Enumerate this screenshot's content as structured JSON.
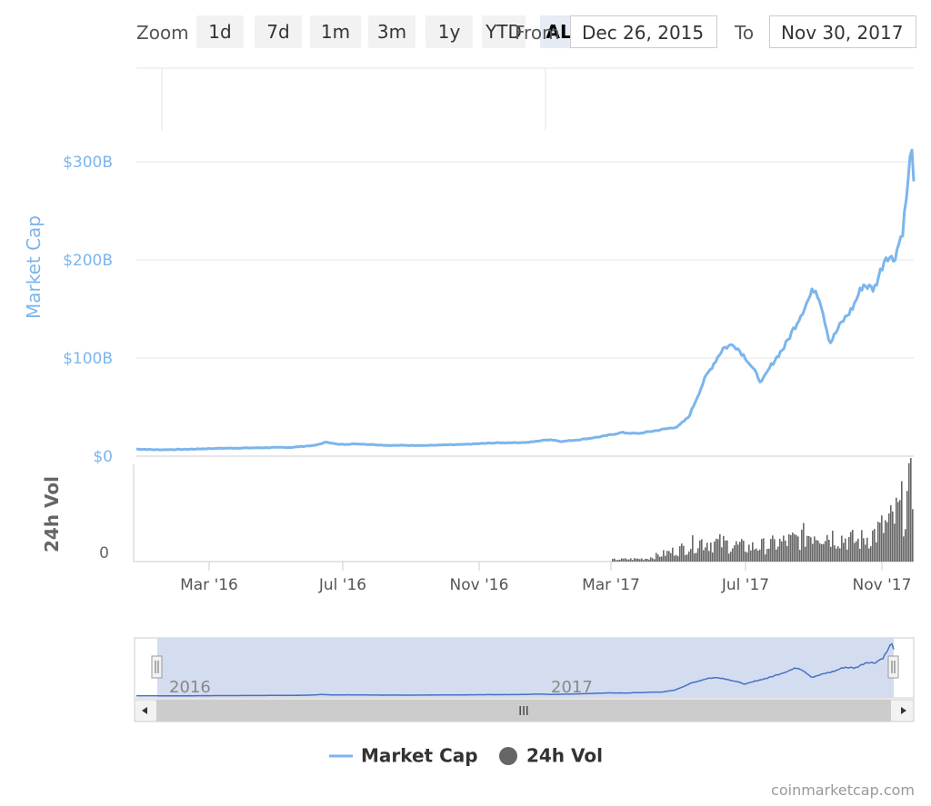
{
  "range_selector": {
    "zoom_label": "Zoom",
    "buttons": [
      "1d",
      "7d",
      "1m",
      "3m",
      "1y",
      "YTD",
      "ALL"
    ],
    "active": "ALL",
    "from_label": "From",
    "from_value": "Dec 26, 2015",
    "to_label": "To",
    "to_value": "Nov 30, 2017"
  },
  "legend": {
    "market_cap": "Market Cap",
    "volume": "24h Vol"
  },
  "credit": "coinmarketcap.com",
  "navigator": {
    "labels": [
      "2016",
      "2017"
    ],
    "grip": "III"
  },
  "colors": {
    "market_cap": "#7cb5ec",
    "volume": "#666666",
    "navigator_fill": "#d2daee",
    "navigator_line": "#4572c4"
  },
  "chart_data": {
    "type": "line",
    "title": "",
    "x_range": [
      "2015-12-26",
      "2017-11-30"
    ],
    "x_ticks": [
      "Mar '16",
      "Jul '16",
      "Nov '16",
      "Mar '17",
      "Jul '17",
      "Nov '17"
    ],
    "y_axis_market_cap": {
      "label": "Market Cap",
      "ticks": [
        "$0",
        "$100B",
        "$200B",
        "$300B"
      ],
      "tick_values": [
        0,
        100,
        200,
        300
      ],
      "unit": "B USD"
    },
    "y_axis_volume": {
      "label": "24h Vol",
      "ticks": [
        "0"
      ],
      "tick_values": [
        0
      ]
    },
    "grid": true,
    "legend_position": "bottom",
    "series": [
      {
        "name": "Market Cap",
        "type": "line",
        "points": [
          [
            "2015-12-26",
            7.2
          ],
          [
            "2016-01-15",
            6.5
          ],
          [
            "2016-02-10",
            7
          ],
          [
            "2016-03-10",
            8
          ],
          [
            "2016-04-15",
            8.5
          ],
          [
            "2016-05-15",
            9
          ],
          [
            "2016-06-05",
            11
          ],
          [
            "2016-06-16",
            14.5
          ],
          [
            "2016-06-25",
            12
          ],
          [
            "2016-07-15",
            12.5
          ],
          [
            "2016-08-10",
            11
          ],
          [
            "2016-09-15",
            11
          ],
          [
            "2016-10-15",
            11.8
          ],
          [
            "2016-11-15",
            13.5
          ],
          [
            "2016-12-15",
            14
          ],
          [
            "2017-01-04",
            17
          ],
          [
            "2017-01-15",
            15
          ],
          [
            "2017-02-01",
            17
          ],
          [
            "2017-02-20",
            20
          ],
          [
            "2017-03-10",
            24
          ],
          [
            "2017-03-25",
            23
          ],
          [
            "2017-04-10",
            26
          ],
          [
            "2017-04-30",
            30
          ],
          [
            "2017-05-10",
            40
          ],
          [
            "2017-05-25",
            80
          ],
          [
            "2017-06-10",
            110
          ],
          [
            "2017-06-20",
            114
          ],
          [
            "2017-07-01",
            100
          ],
          [
            "2017-07-15",
            75
          ],
          [
            "2017-07-25",
            95
          ],
          [
            "2017-08-05",
            112
          ],
          [
            "2017-08-20",
            145
          ],
          [
            "2017-09-01",
            172
          ],
          [
            "2017-09-06",
            160
          ],
          [
            "2017-09-15",
            115
          ],
          [
            "2017-09-25",
            135
          ],
          [
            "2017-10-05",
            150
          ],
          [
            "2017-10-15",
            175
          ],
          [
            "2017-10-25",
            170
          ],
          [
            "2017-11-05",
            205
          ],
          [
            "2017-11-12",
            200
          ],
          [
            "2017-11-20",
            230
          ],
          [
            "2017-11-26",
            290
          ],
          [
            "2017-11-28",
            326
          ],
          [
            "2017-11-30",
            280
          ]
        ]
      },
      {
        "name": "24h Vol",
        "type": "column",
        "points": [
          [
            "2017-03-01",
            2
          ],
          [
            "2017-04-01",
            3
          ],
          [
            "2017-05-01",
            12
          ],
          [
            "2017-05-20",
            20
          ],
          [
            "2017-06-10",
            18
          ],
          [
            "2017-07-01",
            14
          ],
          [
            "2017-07-20",
            16
          ],
          [
            "2017-08-15",
            22
          ],
          [
            "2017-09-01",
            30
          ],
          [
            "2017-09-15",
            26
          ],
          [
            "2017-10-10",
            20
          ],
          [
            "2017-10-25",
            28
          ],
          [
            "2017-11-10",
            40
          ],
          [
            "2017-11-20",
            55
          ],
          [
            "2017-11-29",
            72
          ]
        ]
      }
    ]
  }
}
